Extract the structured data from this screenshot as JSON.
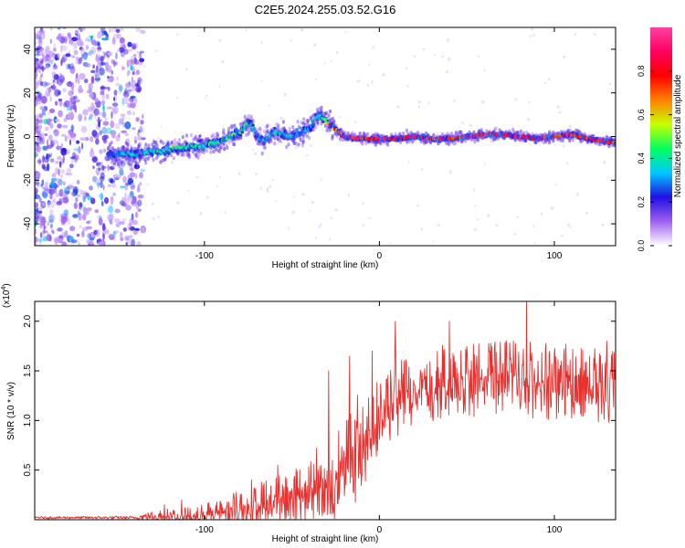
{
  "figure_title": "C2E5.2024.255.03.52.G16",
  "chart_data": [
    {
      "type": "heatmap",
      "panel": "spectrogram",
      "xlabel": "Height of straight line (km)",
      "ylabel": "Frequency (Hz)",
      "xlim": [
        -197,
        135
      ],
      "ylim": [
        -50,
        50
      ],
      "xticks": [
        -100,
        0,
        100
      ],
      "xtick_labels": [
        "-100",
        "0",
        "100"
      ],
      "yticks": [
        -40,
        -20,
        0,
        20,
        40
      ],
      "ytick_labels": [
        "-40",
        "-20",
        "0",
        "20",
        "40"
      ],
      "grid": false,
      "colorbar": {
        "label": "Normalized spectral amplitude",
        "range": [
          0,
          1
        ],
        "ticks": [
          0.0,
          0.2,
          0.4,
          0.6,
          0.8
        ],
        "tick_labels": [
          "0.0",
          "0.2",
          "0.4",
          "0.6",
          "0.8"
        ],
        "colormap": [
          "#ffffff",
          "#a060f0",
          "#2010e0",
          "#00c8ff",
          "#00ff60",
          "#c8ff00",
          "#ff8000",
          "#ff0000",
          "#ff0060",
          "#ff40a0"
        ]
      },
      "ridge": {
        "x": [
          -155,
          -140,
          -120,
          -100,
          -90,
          -80,
          -74,
          -70,
          -66,
          -60,
          -50,
          -40,
          -34,
          -28,
          -24,
          -20,
          -10,
          0,
          10,
          20,
          30,
          40,
          50,
          60,
          70,
          80,
          90,
          100,
          110,
          120,
          130,
          135
        ],
        "y": [
          -8,
          -8,
          -6,
          -4,
          -2,
          2,
          7,
          0,
          -2,
          2,
          0,
          4,
          10,
          5,
          3,
          0,
          -1,
          -1,
          -1,
          0,
          -1,
          -1,
          0,
          1,
          1,
          0,
          -1,
          0,
          1,
          -1,
          -2,
          -3
        ],
        "amplitude": [
          0.3,
          0.4,
          0.45,
          0.45,
          0.5,
          0.5,
          0.45,
          0.35,
          0.35,
          0.4,
          0.4,
          0.4,
          0.35,
          0.7,
          0.8,
          0.9,
          0.9,
          0.95,
          0.95,
          0.95,
          0.9,
          0.85,
          0.9,
          0.95,
          0.95,
          0.95,
          0.9,
          0.9,
          0.9,
          0.9,
          0.9,
          0.9
        ]
      },
      "noise_region_x": [
        -197,
        -135
      ]
    },
    {
      "type": "line",
      "panel": "snr",
      "xlabel": "Height of straight line (km)",
      "ylabel": "SNR (10 * v/v)",
      "multiplier_label": "(x10",
      "multiplier_exponent": "4",
      "multiplier_close": ")",
      "xlim": [
        -197,
        135
      ],
      "ylim": [
        0,
        2.2
      ],
      "xticks": [
        -100,
        0,
        100
      ],
      "xtick_labels": [
        "-100",
        "0",
        "100"
      ],
      "yticks": [
        0.5,
        1.0,
        1.5,
        2.0
      ],
      "ytick_labels": [
        "0.5",
        "1.0",
        "1.5",
        "2.0"
      ],
      "grid": false,
      "series": [
        {
          "color": "#e8312f",
          "envelope_x": [
            -197,
            -140,
            -125,
            -110,
            -100,
            -90,
            -80,
            -70,
            -60,
            -50,
            -40,
            -30,
            -25,
            -20,
            -15,
            -10,
            -5,
            0,
            5,
            10,
            15,
            20,
            30,
            40,
            60,
            80,
            100,
            120,
            135
          ],
          "envelope_mean": [
            0.02,
            0.02,
            0.05,
            0.06,
            0.08,
            0.12,
            0.16,
            0.2,
            0.25,
            0.3,
            0.36,
            0.45,
            0.55,
            0.7,
            0.8,
            0.9,
            1.05,
            1.15,
            1.25,
            1.3,
            1.35,
            1.4,
            1.45,
            1.5,
            1.52,
            1.5,
            1.48,
            1.45,
            1.45
          ],
          "envelope_spread": [
            0.01,
            0.015,
            0.06,
            0.06,
            0.08,
            0.1,
            0.14,
            0.18,
            0.2,
            0.22,
            0.25,
            0.3,
            0.35,
            0.4,
            0.42,
            0.4,
            0.35,
            0.3,
            0.3,
            0.3,
            0.3,
            0.3,
            0.3,
            0.3,
            0.3,
            0.3,
            0.3,
            0.3,
            0.3
          ],
          "peaks": [
            [
              -123,
              0.15
            ],
            [
              -113,
              0.2
            ],
            [
              -93,
              0.18
            ],
            [
              -73,
              0.4
            ],
            [
              -58,
              0.55
            ],
            [
              -36,
              0.72
            ],
            [
              -29,
              1.5
            ],
            [
              -17,
              1.65
            ],
            [
              -4,
              1.7
            ],
            [
              9,
              2.0
            ],
            [
              13,
              1.35
            ],
            [
              40,
              2.0
            ],
            [
              84,
              2.2
            ],
            [
              130,
              1.8
            ]
          ]
        }
      ]
    }
  ]
}
